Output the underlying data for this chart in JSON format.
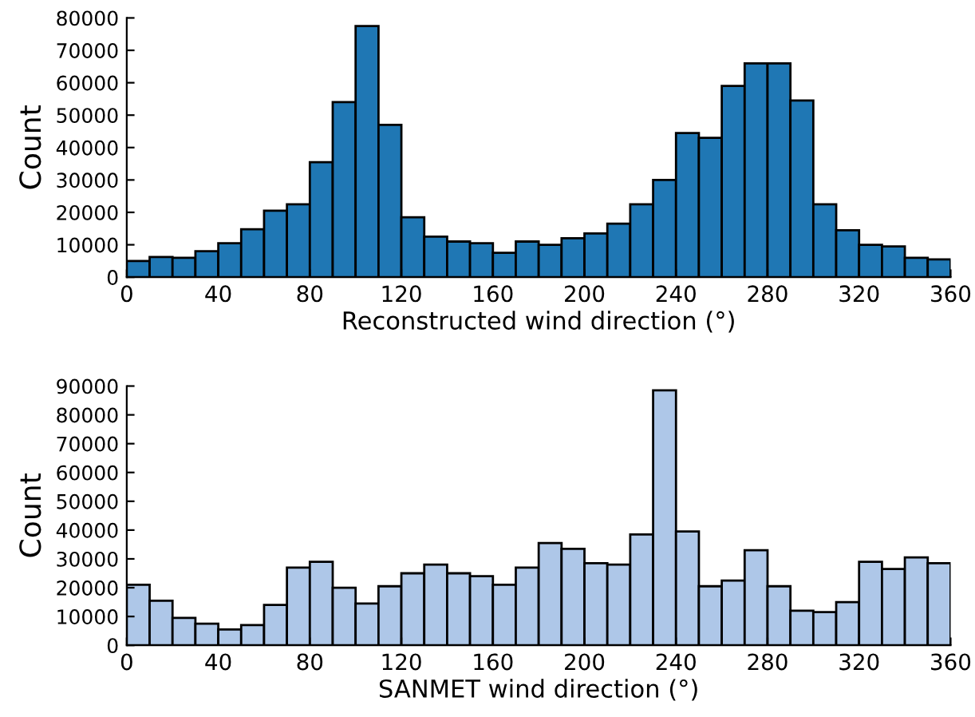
{
  "chart_data": [
    {
      "type": "histogram",
      "xlabel": "Reconstructed wind direction (°)",
      "ylabel": "Count",
      "color": "#1f77b4",
      "bins": [
        0,
        10,
        20,
        30,
        40,
        50,
        60,
        70,
        80,
        90,
        100,
        110,
        120,
        130,
        140,
        150,
        160,
        170,
        180,
        190,
        200,
        210,
        220,
        230,
        240,
        250,
        260,
        270,
        280,
        290,
        300,
        310,
        320,
        330,
        340,
        350,
        360
      ],
      "values": [
        5000,
        6200,
        6000,
        8000,
        10500,
        14800,
        20500,
        22500,
        35500,
        54000,
        77500,
        47000,
        18500,
        12500,
        11000,
        10500,
        7500,
        11000,
        10000,
        12000,
        13500,
        16500,
        22500,
        30000,
        44500,
        43000,
        59000,
        66000,
        66000,
        54500,
        22500,
        14500,
        10000,
        9500,
        6000,
        5500
      ],
      "xlim": [
        0,
        360
      ],
      "xticks": [
        0,
        40,
        80,
        120,
        160,
        200,
        240,
        280,
        320,
        360
      ],
      "ylim": [
        0,
        80000
      ],
      "yticks": [
        0,
        10000,
        20000,
        30000,
        40000,
        50000,
        60000,
        70000,
        80000
      ]
    },
    {
      "type": "histogram",
      "xlabel": "SANMET wind direction (°)",
      "ylabel": "Count",
      "color": "#aec7e8",
      "bins": [
        0,
        10,
        20,
        30,
        40,
        50,
        60,
        70,
        80,
        90,
        100,
        110,
        120,
        130,
        140,
        150,
        160,
        170,
        180,
        190,
        200,
        210,
        220,
        230,
        240,
        250,
        260,
        270,
        280,
        290,
        300,
        310,
        320,
        330,
        340,
        350,
        360
      ],
      "values": [
        21000,
        15500,
        9500,
        7500,
        5500,
        7000,
        14000,
        27000,
        29000,
        20000,
        14500,
        20500,
        25000,
        28000,
        25000,
        24000,
        21000,
        27000,
        35500,
        33500,
        28500,
        28000,
        38500,
        88500,
        39500,
        20500,
        22500,
        33000,
        20500,
        12000,
        11500,
        15000,
        29000,
        26500,
        30500,
        28500
      ],
      "xlim": [
        0,
        360
      ],
      "xticks": [
        0,
        40,
        80,
        120,
        160,
        200,
        240,
        280,
        320,
        360
      ],
      "ylim": [
        0,
        90000
      ],
      "yticks": [
        0,
        10000,
        20000,
        30000,
        40000,
        50000,
        60000,
        70000,
        80000,
        90000
      ]
    }
  ]
}
